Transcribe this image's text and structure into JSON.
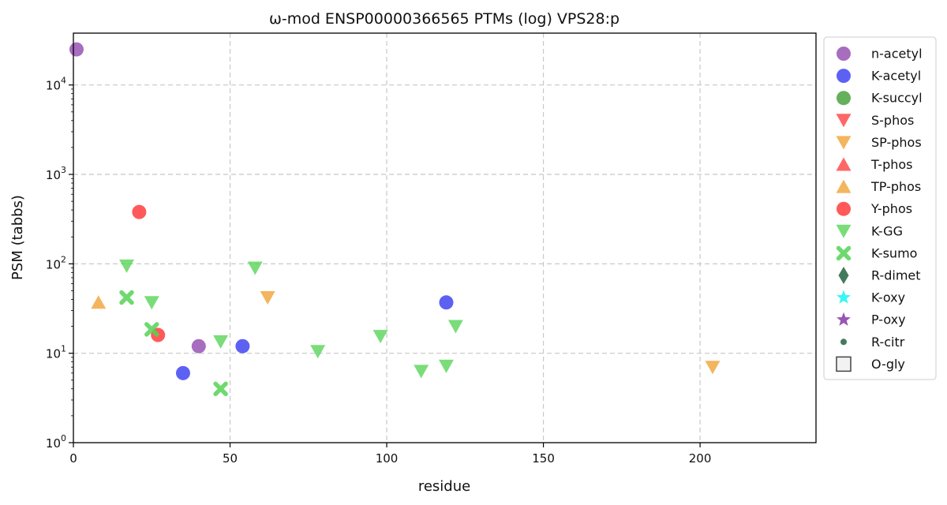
{
  "chart_data": {
    "type": "scatter",
    "title": "ω-mod ENSP00000366565 PTMs (log) VPS28:p",
    "xlabel": "residue",
    "ylabel": "PSM (tabbs)",
    "xlim": [
      0,
      237
    ],
    "ylim": [
      1,
      38000
    ],
    "yscale": "log",
    "xticks": [
      0,
      50,
      100,
      150,
      200
    ],
    "xtick_labels": [
      "0",
      "50",
      "100",
      "150",
      "200"
    ],
    "yticks": [
      1,
      10,
      100,
      1000,
      10000
    ],
    "ytick_labels": [
      {
        "base": "10",
        "exp": "0"
      },
      {
        "base": "10",
        "exp": "1"
      },
      {
        "base": "10",
        "exp": "2"
      },
      {
        "base": "10",
        "exp": "3"
      },
      {
        "base": "10",
        "exp": "4"
      }
    ],
    "grid": true,
    "legend_position": "outside-right",
    "series": [
      {
        "name": "n-acetyl",
        "marker": "circle",
        "color": "#8e44ad",
        "points": [
          [
            1,
            25000
          ],
          [
            40,
            12
          ]
        ]
      },
      {
        "name": "K-acetyl",
        "marker": "circle",
        "color": "#2f35f0",
        "points": [
          [
            35,
            6
          ],
          [
            54,
            12
          ],
          [
            119,
            37
          ]
        ]
      },
      {
        "name": "K-succyl",
        "marker": "circle",
        "color": "#3a9a2c",
        "points": []
      },
      {
        "name": "S-phos",
        "marker": "triangle-down",
        "color": "#ff3b3b",
        "points": []
      },
      {
        "name": "SP-phos",
        "marker": "triangle-down",
        "color": "#f0a030",
        "points": [
          [
            62,
            42
          ],
          [
            204,
            7
          ]
        ]
      },
      {
        "name": "T-phos",
        "marker": "triangle-up",
        "color": "#ff3b3b",
        "points": []
      },
      {
        "name": "TP-phos",
        "marker": "triangle-up",
        "color": "#f0a030",
        "points": [
          [
            8,
            37
          ]
        ]
      },
      {
        "name": "Y-phos",
        "marker": "circle",
        "color": "#ff2a2a",
        "points": [
          [
            21,
            380
          ],
          [
            27,
            16
          ]
        ]
      },
      {
        "name": "K-GG",
        "marker": "triangle-down",
        "color": "#55d455",
        "points": [
          [
            17,
            95
          ],
          [
            25,
            37
          ],
          [
            47,
            13.5
          ],
          [
            58,
            90
          ],
          [
            78,
            10.5
          ],
          [
            98,
            15.5
          ],
          [
            111,
            6.3
          ],
          [
            119,
            7.2
          ],
          [
            122,
            20
          ]
        ]
      },
      {
        "name": "K-sumo",
        "marker": "x",
        "color": "#55d455",
        "points": [
          [
            17,
            42
          ],
          [
            25,
            18.5
          ],
          [
            47,
            4
          ]
        ]
      },
      {
        "name": "R-dimet",
        "marker": "thin-diamond",
        "color": "#2f6b4a",
        "points": []
      },
      {
        "name": "K-oxy",
        "marker": "star",
        "color": "#22f5f5",
        "points": []
      },
      {
        "name": "P-oxy",
        "marker": "star",
        "color": "#8e44ad",
        "points": []
      },
      {
        "name": "R-citr",
        "marker": "small-circle",
        "color": "#2f6b4a",
        "points": []
      },
      {
        "name": "O-gly",
        "marker": "square-open",
        "color": "#444444",
        "points": []
      }
    ]
  }
}
